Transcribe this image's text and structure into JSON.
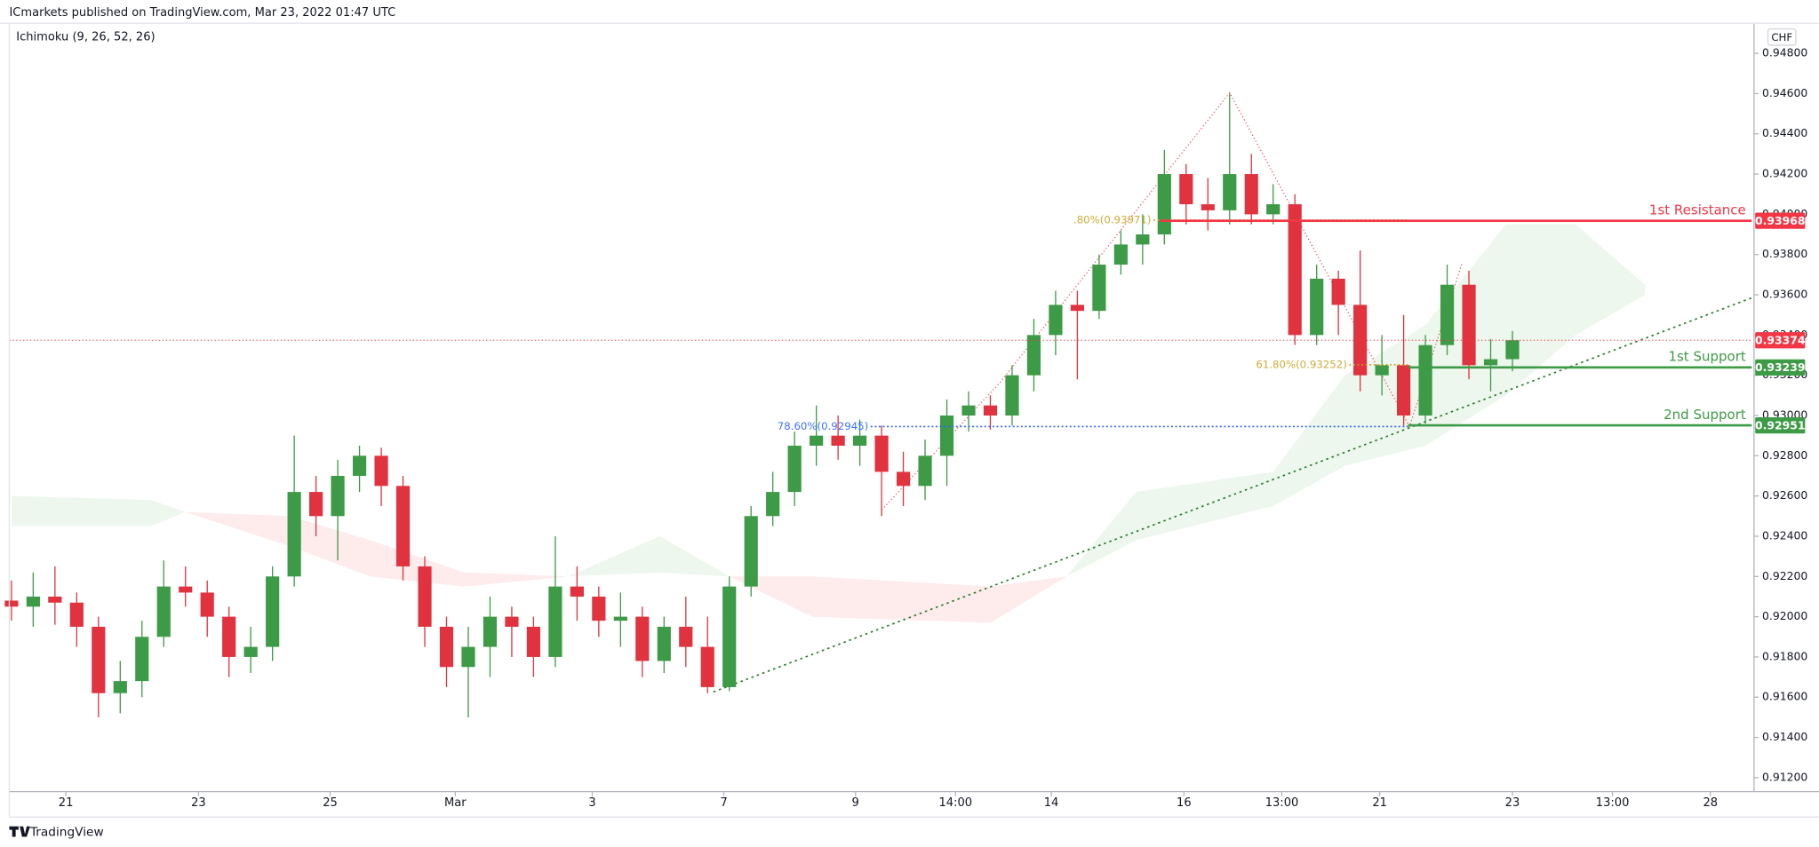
{
  "header": {
    "title": "ICmarkets published on TradingView.com, Mar 23, 2022 01:47 UTC",
    "indicator": "Ichimoku (9, 26, 52, 26)",
    "currency": "CHF",
    "brand": "TradingView"
  },
  "chart_data": {
    "type": "candlestick",
    "up_color": "#3d9a46",
    "down_color": "#e0323f",
    "open": [
      0.9208,
      0.9205,
      0.921,
      0.9207,
      0.9195,
      0.9162,
      0.9168,
      0.919,
      0.9215,
      0.9212,
      0.92,
      0.918,
      0.9185,
      0.922,
      0.9262,
      0.925,
      0.927,
      0.928,
      0.9265,
      0.9225,
      0.9195,
      0.9175,
      0.9185,
      0.92,
      0.9195,
      0.918,
      0.9215,
      0.921,
      0.9198,
      0.92,
      0.9178,
      0.9195,
      0.9185,
      0.9165,
      0.9215,
      0.925,
      0.9262,
      0.9285,
      0.929,
      0.9285,
      0.929,
      0.9272,
      0.9265,
      0.928,
      0.93,
      0.9305,
      0.93,
      0.932,
      0.934,
      0.9355,
      0.9352,
      0.9375,
      0.9385,
      0.939,
      0.942,
      0.9405,
      0.9402,
      0.942,
      0.94,
      0.9405,
      0.934,
      0.9368,
      0.9355,
      0.932,
      0.9325,
      0.93,
      0.9335,
      0.9365,
      0.9325,
      0.9328
    ],
    "high": [
      0.9218,
      0.9222,
      0.9225,
      0.9212,
      0.92,
      0.9178,
      0.9198,
      0.9228,
      0.9225,
      0.9218,
      0.9205,
      0.9195,
      0.9225,
      0.929,
      0.927,
      0.9278,
      0.9285,
      0.9284,
      0.927,
      0.923,
      0.92,
      0.9195,
      0.921,
      0.9205,
      0.92,
      0.924,
      0.9225,
      0.9215,
      0.9212,
      0.9205,
      0.92,
      0.921,
      0.92,
      0.922,
      0.9255,
      0.9272,
      0.9292,
      0.9305,
      0.93,
      0.9298,
      0.9295,
      0.9282,
      0.9288,
      0.9308,
      0.9312,
      0.931,
      0.9325,
      0.9348,
      0.9362,
      0.9362,
      0.938,
      0.9392,
      0.94,
      0.9432,
      0.9425,
      0.9418,
      0.946,
      0.943,
      0.9415,
      0.941,
      0.9375,
      0.9372,
      0.9382,
      0.934,
      0.935,
      0.934,
      0.9375,
      0.9372,
      0.9338,
      0.9342
    ],
    "low": [
      0.9198,
      0.9195,
      0.9196,
      0.9185,
      0.915,
      0.9152,
      0.916,
      0.9185,
      0.9205,
      0.919,
      0.917,
      0.9172,
      0.9178,
      0.9215,
      0.924,
      0.9228,
      0.9262,
      0.9255,
      0.9218,
      0.9185,
      0.9165,
      0.915,
      0.917,
      0.918,
      0.917,
      0.9175,
      0.9198,
      0.919,
      0.9185,
      0.917,
      0.9172,
      0.9175,
      0.9162,
      0.9163,
      0.921,
      0.9245,
      0.9255,
      0.9275,
      0.9278,
      0.9275,
      0.925,
      0.9255,
      0.9258,
      0.9265,
      0.9292,
      0.9293,
      0.9295,
      0.9312,
      0.933,
      0.9318,
      0.9348,
      0.937,
      0.9375,
      0.9385,
      0.9395,
      0.9392,
      0.9395,
      0.9395,
      0.9395,
      0.9335,
      0.9335,
      0.934,
      0.9312,
      0.931,
      0.9295,
      0.9296,
      0.933,
      0.9318,
      0.9312,
      0.9322
    ],
    "close": [
      0.9205,
      0.921,
      0.9207,
      0.9195,
      0.9162,
      0.9168,
      0.919,
      0.9215,
      0.9212,
      0.92,
      0.918,
      0.9185,
      0.922,
      0.9262,
      0.925,
      0.927,
      0.928,
      0.9265,
      0.9225,
      0.9195,
      0.9175,
      0.9185,
      0.92,
      0.9195,
      0.918,
      0.9215,
      0.921,
      0.9198,
      0.92,
      0.9178,
      0.9195,
      0.9185,
      0.9165,
      0.9215,
      0.925,
      0.9262,
      0.9285,
      0.929,
      0.9285,
      0.929,
      0.9272,
      0.9265,
      0.928,
      0.93,
      0.9305,
      0.93,
      0.932,
      0.934,
      0.9355,
      0.9352,
      0.9375,
      0.9385,
      0.939,
      0.942,
      0.9405,
      0.9402,
      0.942,
      0.94,
      0.9405,
      0.934,
      0.9368,
      0.9355,
      0.932,
      0.9325,
      0.93,
      0.9335,
      0.9365,
      0.9325,
      0.9328,
      0.93374
    ],
    "xlim": [
      -0.1,
      80
    ],
    "xticks": [
      {
        "value": 2.5,
        "label": "21"
      },
      {
        "value": 8.6,
        "label": "23"
      },
      {
        "value": 14.65,
        "label": "25"
      },
      {
        "value": 20.4,
        "label": "Mar"
      },
      {
        "value": 26.7,
        "label": "3"
      },
      {
        "value": 32.75,
        "label": "7"
      },
      {
        "value": 38.8,
        "label": "9"
      },
      {
        "value": 43.4,
        "label": "14:00"
      },
      {
        "value": 47.8,
        "label": "14"
      },
      {
        "value": 53.9,
        "label": "16"
      },
      {
        "value": 58.4,
        "label": "13:00"
      },
      {
        "value": 62.9,
        "label": "21"
      },
      {
        "value": 69.0,
        "label": "23"
      },
      {
        "value": 73.6,
        "label": "13:00"
      },
      {
        "value": 78.1,
        "label": "28"
      }
    ],
    "ylim": [
      0.91148,
      0.9495
    ],
    "yticks": [
      {
        "value": 0.912,
        "label": "0.91200"
      },
      {
        "value": 0.914,
        "label": "0.91400"
      },
      {
        "value": 0.916,
        "label": "0.91600"
      },
      {
        "value": 0.918,
        "label": "0.91800"
      },
      {
        "value": 0.92,
        "label": "0.92000"
      },
      {
        "value": 0.922,
        "label": "0.92200"
      },
      {
        "value": 0.924,
        "label": "0.92400"
      },
      {
        "value": 0.926,
        "label": "0.92600"
      },
      {
        "value": 0.928,
        "label": "0.92800"
      },
      {
        "value": 0.93,
        "label": "0.93000"
      },
      {
        "value": 0.932,
        "label": "0.93200"
      },
      {
        "value": 0.934,
        "label": "0.93400"
      },
      {
        "value": 0.936,
        "label": "0.93600"
      },
      {
        "value": 0.938,
        "label": "0.93800"
      },
      {
        "value": 0.94,
        "label": "0.94000"
      },
      {
        "value": 0.942,
        "label": "0.94200"
      },
      {
        "value": 0.944,
        "label": "0.94400"
      },
      {
        "value": 0.946,
        "label": "0.94600"
      },
      {
        "value": 0.948,
        "label": "0.94800"
      }
    ],
    "cloud": {
      "x": [
        0,
        6.4,
        8,
        12.8,
        16.5,
        20.8,
        25.6,
        29.8,
        33,
        36.8,
        45,
        48.5,
        51.7,
        58,
        61.3,
        65,
        68.7,
        71.9,
        75.1
      ],
      "span_a": [
        0.926,
        0.9258,
        0.9252,
        0.9235,
        0.922,
        0.9215,
        0.922,
        0.924,
        0.922,
        0.92,
        0.9197,
        0.922,
        0.9262,
        0.9272,
        0.932,
        0.9345,
        0.9395,
        0.9395,
        0.9365
      ],
      "span_b": [
        0.9245,
        0.9245,
        0.9252,
        0.925,
        0.9238,
        0.9222,
        0.922,
        0.9222,
        0.922,
        0.922,
        0.9215,
        0.922,
        0.9238,
        0.9255,
        0.9275,
        0.9285,
        0.931,
        0.934,
        0.936
      ],
      "bull_color": "#4caf50",
      "bear_color": "#f23645"
    },
    "current_price": {
      "value": 0.93374,
      "color": "#f23645"
    },
    "levels": [
      {
        "name": "1st Resistance",
        "value": 0.93968,
        "color": "#f23645"
      },
      {
        "name": "1st Support",
        "value": 0.93239,
        "color": "#3d9a46"
      },
      {
        "name": "2nd Support",
        "value": 0.92951,
        "color": "#3d9a46"
      }
    ],
    "fib_levels": [
      {
        "label": "78.60%(0.92945)",
        "value": 0.92945,
        "color": "#2962ff"
      },
      {
        "label": "61.80%(0.93252)",
        "value": 0.93252,
        "color": "#c9a227"
      },
      {
        "label": ".80%(0.93971)",
        "value": 0.93971,
        "color": "#c9a227"
      }
    ]
  }
}
